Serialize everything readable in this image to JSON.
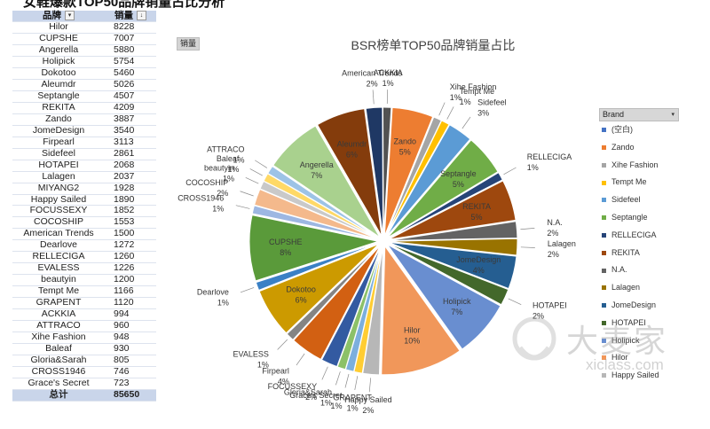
{
  "caption": "女鞋爆款TOP50品牌销量占比分析",
  "table": {
    "headers": {
      "brand": "品牌",
      "sales": "销量"
    },
    "rows": [
      {
        "brand": "Hilor",
        "sales": "8228"
      },
      {
        "brand": "CUPSHE",
        "sales": "7007"
      },
      {
        "brand": "Angerella",
        "sales": "5880"
      },
      {
        "brand": "Holipick",
        "sales": "5754"
      },
      {
        "brand": "Dokotoo",
        "sales": "5460"
      },
      {
        "brand": "Aleumdr",
        "sales": "5026"
      },
      {
        "brand": "Septangle",
        "sales": "4507"
      },
      {
        "brand": "REKITA",
        "sales": "4209"
      },
      {
        "brand": "Zando",
        "sales": "3887"
      },
      {
        "brand": "JomeDesign",
        "sales": "3540"
      },
      {
        "brand": "Firpearl",
        "sales": "3113"
      },
      {
        "brand": "Sidefeel",
        "sales": "2861"
      },
      {
        "brand": "HOTAPEI",
        "sales": "2068"
      },
      {
        "brand": "Lalagen",
        "sales": "2037"
      },
      {
        "brand": "MIYANG2",
        "sales": "1928"
      },
      {
        "brand": "Happy Sailed",
        "sales": "1890"
      },
      {
        "brand": "FOCUSSEXY",
        "sales": "1852"
      },
      {
        "brand": "COCOSHIP",
        "sales": "1553"
      },
      {
        "brand": "American Trends",
        "sales": "1500"
      },
      {
        "brand": "Dearlove",
        "sales": "1272"
      },
      {
        "brand": "RELLECIGA",
        "sales": "1260"
      },
      {
        "brand": "EVALESS",
        "sales": "1226"
      },
      {
        "brand": "beautyin",
        "sales": "1200"
      },
      {
        "brand": "Tempt Me",
        "sales": "1166"
      },
      {
        "brand": "GRAPENT",
        "sales": "1120"
      },
      {
        "brand": "ACKKIA",
        "sales": "994"
      },
      {
        "brand": "ATTRACO",
        "sales": "960"
      },
      {
        "brand": "Xihe Fashion",
        "sales": "948"
      },
      {
        "brand": "Baleaf",
        "sales": "930"
      },
      {
        "brand": "Gloria&Sarah",
        "sales": "805"
      },
      {
        "brand": "CROSS1946",
        "sales": "746"
      },
      {
        "brand": "Grace's Secret",
        "sales": "723"
      }
    ],
    "total": {
      "label": "总计",
      "value": "85650"
    }
  },
  "field_tag": "销量",
  "legend": {
    "title": "Brand",
    "items": [
      {
        "label": "(空白)",
        "color": "#4472c4"
      },
      {
        "label": "Zando",
        "color": "#ed7d31"
      },
      {
        "label": "Xihe Fashion",
        "color": "#a5a5a5"
      },
      {
        "label": "Tempt Me",
        "color": "#ffc000"
      },
      {
        "label": "Sidefeel",
        "color": "#5b9bd5"
      },
      {
        "label": "Septangle",
        "color": "#70ad47"
      },
      {
        "label": "RELLECIGA",
        "color": "#264478"
      },
      {
        "label": "REKITA",
        "color": "#9e480e"
      },
      {
        "label": "N.A.",
        "color": "#636363"
      },
      {
        "label": "Lalagen",
        "color": "#997300"
      },
      {
        "label": "JomeDesign",
        "color": "#255e91"
      },
      {
        "label": "HOTAPEI",
        "color": "#43682b"
      },
      {
        "label": "Holipick",
        "color": "#698ed0"
      },
      {
        "label": "Hilor",
        "color": "#f1975a"
      },
      {
        "label": "Happy Sailed",
        "color": "#b7b7b7"
      }
    ]
  },
  "watermark": {
    "text": "大麦家",
    "url": "xiclass.com"
  },
  "chart_data": {
    "type": "pie",
    "title": "BSR榜单TOP50品牌销量占比",
    "slices": [
      {
        "label": "Zando",
        "pct": "5%",
        "value": 5,
        "color": "#ed7d31"
      },
      {
        "label": "Xihe Fashion",
        "pct": "1%",
        "value": 1,
        "color": "#a5a5a5"
      },
      {
        "label": "Tempt Me",
        "pct": "1%",
        "value": 1,
        "color": "#ffc000"
      },
      {
        "label": "Sidefeel",
        "pct": "3%",
        "value": 3,
        "color": "#5b9bd5"
      },
      {
        "label": "Septangle",
        "pct": "5%",
        "value": 5,
        "color": "#70ad47"
      },
      {
        "label": "RELLECIGA",
        "pct": "1%",
        "value": 1,
        "color": "#264478"
      },
      {
        "label": "REKITA",
        "pct": "5%",
        "value": 5,
        "color": "#9e480e"
      },
      {
        "label": "N.A.",
        "pct": "2%",
        "value": 2,
        "color": "#636363"
      },
      {
        "label": "Lalagen",
        "pct": "2%",
        "value": 2,
        "color": "#997300"
      },
      {
        "label": "JomeDesign",
        "pct": "4%",
        "value": 4,
        "color": "#255e91"
      },
      {
        "label": "HOTAPEI",
        "pct": "2%",
        "value": 2,
        "color": "#43682b"
      },
      {
        "label": "Holipick",
        "pct": "7%",
        "value": 7,
        "color": "#698ed0"
      },
      {
        "label": "Hilor",
        "pct": "10%",
        "value": 10,
        "color": "#f1975a"
      },
      {
        "label": "Happy Sailed",
        "pct": "2%",
        "value": 2,
        "color": "#b7b7b7"
      },
      {
        "label": "GRAPENT",
        "pct": "1%",
        "value": 1,
        "color": "#ffcd33"
      },
      {
        "label": "Grace's Secret",
        "pct": "1%",
        "value": 1,
        "color": "#7cafdd"
      },
      {
        "label": "Gloria&Sarah",
        "pct": "1%",
        "value": 1,
        "color": "#8cc168"
      },
      {
        "label": "FOCUSSEXY",
        "pct": "2%",
        "value": 2,
        "color": "#335aa1"
      },
      {
        "label": "Firpearl",
        "pct": "4%",
        "value": 4,
        "color": "#d26012"
      },
      {
        "label": "EVALESS",
        "pct": "1%",
        "value": 1,
        "color": "#848484"
      },
      {
        "label": "Dokotoo",
        "pct": "6%",
        "value": 6,
        "color": "#cc9a00"
      },
      {
        "label": "Dearlove",
        "pct": "1%",
        "value": 1,
        "color": "#3a80c5"
      },
      {
        "label": "CUPSHE",
        "pct": "8%",
        "value": 8,
        "color": "#5a9a3a"
      },
      {
        "label": "CROSS1946",
        "pct": "1%",
        "value": 1,
        "color": "#9db7e2"
      },
      {
        "label": "COCOSHIP",
        "pct": "2%",
        "value": 2,
        "color": "#f4b98c"
      },
      {
        "label": "beautyin",
        "pct": "1%",
        "value": 1,
        "color": "#c9c9c9"
      },
      {
        "label": "Baleaf",
        "pct": "1%",
        "value": 1,
        "color": "#ffd966"
      },
      {
        "label": "ATTRACO",
        "pct": "1%",
        "value": 1,
        "color": "#9dc3e6"
      },
      {
        "label": "Angerella",
        "pct": "7%",
        "value": 7,
        "color": "#a9d18e"
      },
      {
        "label": "Aleumdr",
        "pct": "6%",
        "value": 6,
        "color": "#843c0c"
      },
      {
        "label": "American Trends",
        "pct": "2%",
        "value": 2,
        "color": "#1f3864"
      },
      {
        "label": "ACKKIA",
        "pct": "1%",
        "value": 1,
        "color": "#525252"
      }
    ]
  }
}
